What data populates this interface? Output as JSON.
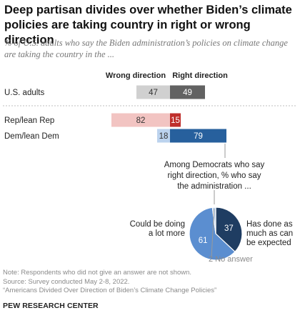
{
  "title": "Deep partisan divides over whether Biden’s climate policies are taking country in right or wrong direction",
  "subtitle": "% of U.S. adults who say the Biden administration’s policies on climate change are taking the country in the ...",
  "chart_data": [
    {
      "type": "bar",
      "orientation": "horizontal-diverging",
      "categories": [
        "U.S. adults",
        "Rep/lean Rep",
        "Dem/lean Dem"
      ],
      "series": [
        {
          "name": "Wrong direction",
          "values": [
            47,
            82,
            18
          ]
        },
        {
          "name": "Right direction",
          "values": [
            49,
            15,
            79
          ]
        }
      ],
      "colors": {
        "U.S. adults": [
          "#d0d0d0",
          "#626262"
        ],
        "Rep/lean Rep": [
          "#f2c4c2",
          "#bf2f2c"
        ],
        "Dem/lean Dem": [
          "#bcd3ee",
          "#27609d"
        ]
      },
      "grid": false
    },
    {
      "type": "pie",
      "title": "Among Democrats who say right direction, % who say the administration ...",
      "slices": [
        {
          "name": "Has done as much as can be expected",
          "value": 37,
          "color": "#1f3d62"
        },
        {
          "name": "Could be doing a lot more",
          "value": 61,
          "color": "#5b8ed0"
        },
        {
          "name": "No answer",
          "value": 2,
          "color": "#bcd3ee"
        }
      ]
    }
  ],
  "labels": {
    "has_done_lines": [
      "Has done as",
      "much as can",
      "be expected"
    ],
    "could_lines": [
      "Could be doing",
      "a lot more"
    ],
    "no_answer": "2 No answer",
    "pie_title_lines": [
      "Among Democrats who say",
      "right direction, % who say",
      "the administration ..."
    ]
  },
  "notes": {
    "note": "Note: Respondents who did not give an answer are not shown.",
    "source": "Source: Survey conducted May 2-8, 2022.",
    "report": "“Americans Divided Over Direction of Biden’s Climate Change Policies”"
  },
  "brand": "PEW RESEARCH CENTER"
}
